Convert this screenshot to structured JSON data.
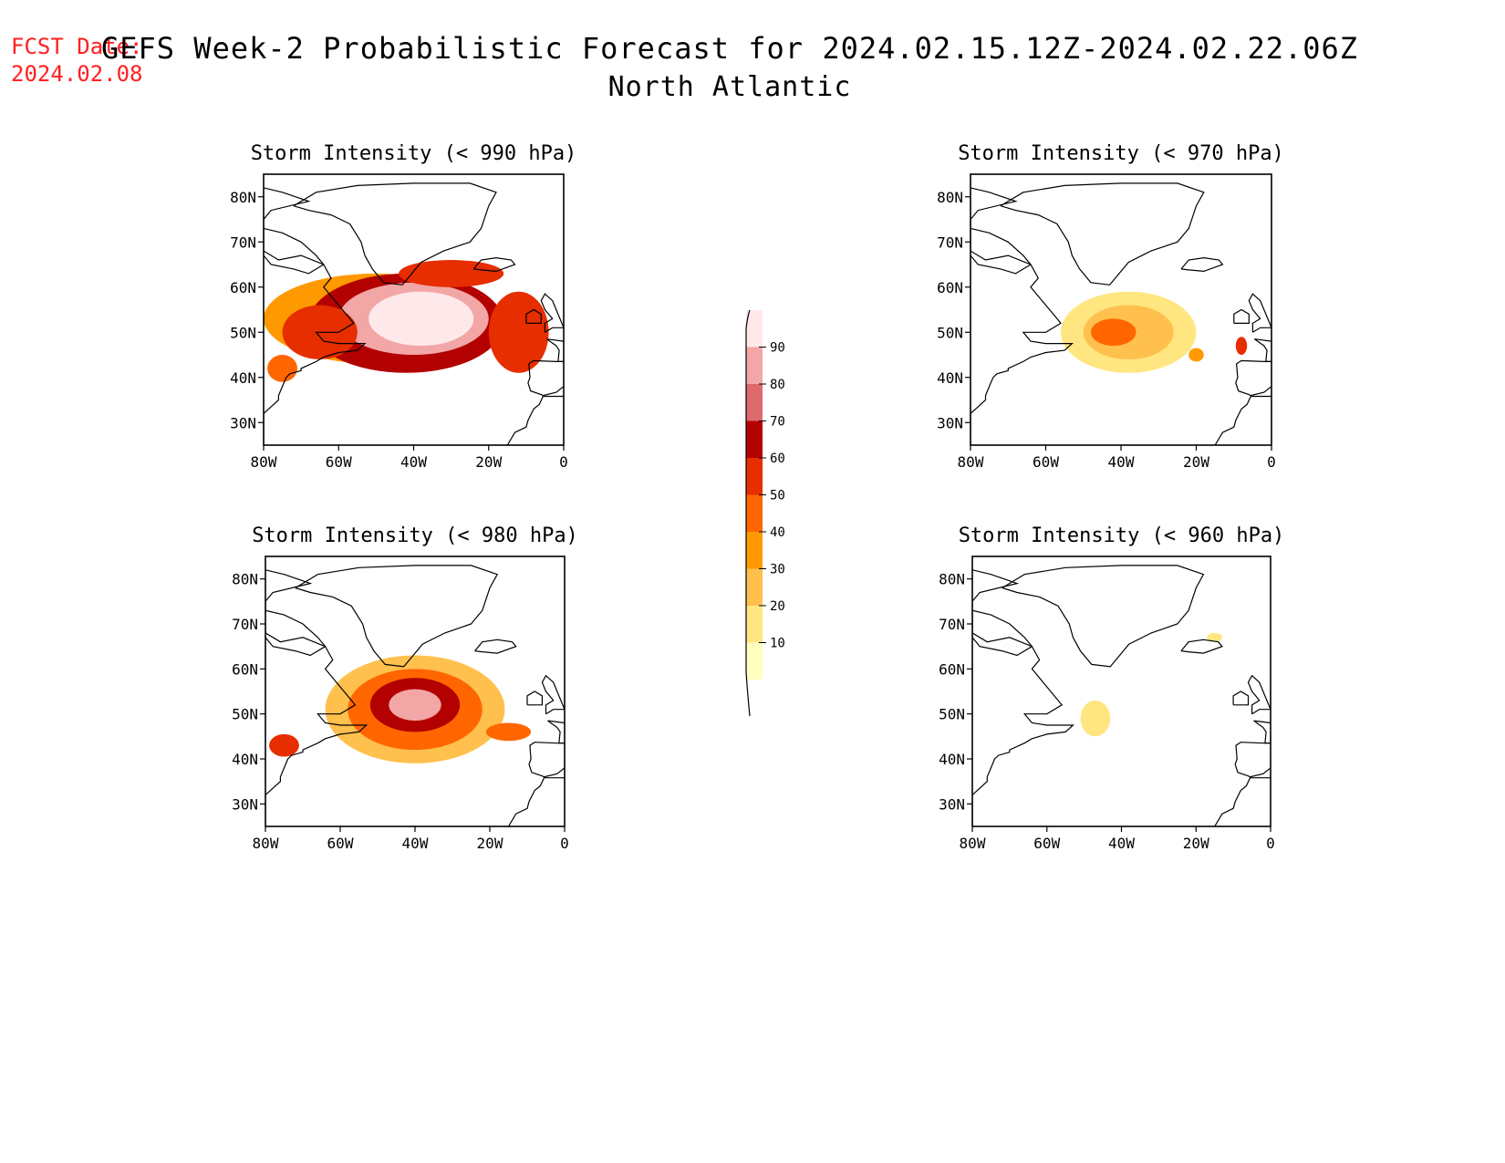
{
  "header": {
    "fcst_label": "FCST Date:",
    "fcst_date": "2024.02.08",
    "title": "GEFS Week-2 Probabilistic Forecast for 2024.02.15.12Z-2024.02.22.06Z",
    "subtitle": "North Atlantic"
  },
  "colorbar": {
    "levels": [
      10,
      20,
      30,
      40,
      50,
      60,
      70,
      80,
      90
    ],
    "labels": [
      "10",
      "20",
      "30",
      "40",
      "50",
      "60",
      "70",
      "80",
      "90"
    ],
    "colors": [
      "#ffffbf",
      "#ffe680",
      "#ffc04d",
      "#ff9900",
      "#ff6600",
      "#e62e00",
      "#b30000",
      "#de6b6b",
      "#f2a6a6",
      "#ffe8ea"
    ]
  },
  "panels": [
    {
      "title": "Storm Intensity (< 990 hPa)",
      "xticks": [
        "80W",
        "60W",
        "40W",
        "20W",
        "0"
      ],
      "yticks": [
        "80N",
        "70N",
        "60N",
        "50N",
        "40N",
        "30N"
      ],
      "extent": {
        "lon": [
          -80,
          0
        ],
        "lat": [
          25,
          85
        ]
      },
      "blobs": [
        {
          "lon": -50,
          "lat": 53,
          "rx": 30,
          "ry": 10,
          "level": 3
        },
        {
          "lon": -42,
          "lat": 52,
          "rx": 26,
          "ry": 11,
          "level": 6
        },
        {
          "lon": -40,
          "lat": 53,
          "rx": 20,
          "ry": 8,
          "level": 8
        },
        {
          "lon": -38,
          "lat": 53,
          "rx": 14,
          "ry": 6,
          "level": 9
        },
        {
          "lon": -65,
          "lat": 50,
          "rx": 10,
          "ry": 6,
          "level": 5
        },
        {
          "lon": -12,
          "lat": 50,
          "rx": 8,
          "ry": 9,
          "level": 5
        },
        {
          "lon": -75,
          "lat": 42,
          "rx": 4,
          "ry": 3,
          "level": 4
        },
        {
          "lon": -30,
          "lat": 63,
          "rx": 14,
          "ry": 3,
          "level": 5
        }
      ]
    },
    {
      "title": "Storm Intensity (< 970 hPa)",
      "xticks": [
        "80W",
        "60W",
        "40W",
        "20W",
        "0"
      ],
      "yticks": [
        "80N",
        "70N",
        "60N",
        "50N",
        "40N",
        "30N"
      ],
      "extent": {
        "lon": [
          -80,
          0
        ],
        "lat": [
          25,
          85
        ]
      },
      "blobs": [
        {
          "lon": -38,
          "lat": 50,
          "rx": 18,
          "ry": 9,
          "level": 1
        },
        {
          "lon": -38,
          "lat": 50,
          "rx": 12,
          "ry": 6,
          "level": 2
        },
        {
          "lon": -42,
          "lat": 50,
          "rx": 6,
          "ry": 3,
          "level": 4
        },
        {
          "lon": -8,
          "lat": 47,
          "rx": 1.5,
          "ry": 2,
          "level": 5
        },
        {
          "lon": -20,
          "lat": 45,
          "rx": 2,
          "ry": 1.5,
          "level": 3
        }
      ]
    },
    {
      "title": "Storm Intensity (< 980 hPa)",
      "xticks": [
        "80W",
        "60W",
        "40W",
        "20W",
        "0"
      ],
      "yticks": [
        "80N",
        "70N",
        "60N",
        "50N",
        "40N",
        "30N"
      ],
      "extent": {
        "lon": [
          -80,
          0
        ],
        "lat": [
          25,
          85
        ]
      },
      "blobs": [
        {
          "lon": -40,
          "lat": 51,
          "rx": 24,
          "ry": 12,
          "level": 2
        },
        {
          "lon": -40,
          "lat": 51,
          "rx": 18,
          "ry": 9,
          "level": 4
        },
        {
          "lon": -40,
          "lat": 52,
          "rx": 12,
          "ry": 6,
          "level": 6
        },
        {
          "lon": -40,
          "lat": 52,
          "rx": 7,
          "ry": 3.5,
          "level": 8
        },
        {
          "lon": -75,
          "lat": 43,
          "rx": 4,
          "ry": 2.5,
          "level": 5
        },
        {
          "lon": -15,
          "lat": 46,
          "rx": 6,
          "ry": 2,
          "level": 4
        }
      ]
    },
    {
      "title": "Storm Intensity (< 960 hPa)",
      "xticks": [
        "80W",
        "60W",
        "40W",
        "20W",
        "0"
      ],
      "yticks": [
        "80N",
        "70N",
        "60N",
        "50N",
        "40N",
        "30N"
      ],
      "extent": {
        "lon": [
          -80,
          0
        ],
        "lat": [
          25,
          85
        ]
      },
      "blobs": [
        {
          "lon": -47,
          "lat": 49,
          "rx": 4,
          "ry": 4,
          "level": 1
        },
        {
          "lon": -15,
          "lat": 67,
          "rx": 2,
          "ry": 1,
          "level": 1
        }
      ]
    }
  ]
}
